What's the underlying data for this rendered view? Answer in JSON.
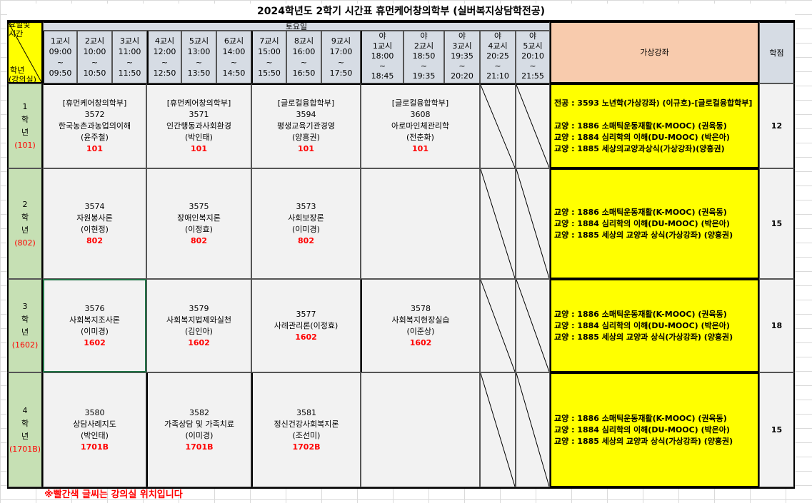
{
  "title": "2024학년도 2학기 시간표 휴먼케어창의학부 (실버복지상담학전공)",
  "corner": {
    "top": "요일및시간",
    "bottom": "학년",
    "bottom2": "(강의실)"
  },
  "day": "토요일",
  "slots": [
    {
      "label": "1교시",
      "start": "09:00",
      "end": "09:50"
    },
    {
      "label": "2교시",
      "start": "10:00",
      "end": "10:50"
    },
    {
      "label": "3교시",
      "start": "11:00",
      "end": "11:50"
    },
    {
      "label": "4교시",
      "start": "12:00",
      "end": "12:50"
    },
    {
      "label": "5교시",
      "start": "13:00",
      "end": "13:50"
    },
    {
      "label": "6교시",
      "start": "14:00",
      "end": "14:50"
    },
    {
      "label": "7교시",
      "start": "15:00",
      "end": "15:50"
    },
    {
      "label": "8교시",
      "start": "16:00",
      "end": "16:50"
    },
    {
      "label": "9교시",
      "start": "17:00",
      "end": "17:50"
    }
  ],
  "night_slots": [
    {
      "prefix": "야",
      "label": "1교시",
      "start": "18:00",
      "end": "18:45"
    },
    {
      "prefix": "야",
      "label": "2교시",
      "start": "18:50",
      "end": "19:35"
    },
    {
      "prefix": "야",
      "label": "3교시",
      "start": "19:35",
      "end": "20:20"
    },
    {
      "prefix": "야",
      "label": "4교시",
      "start": "20:25",
      "end": "21:10"
    },
    {
      "prefix": "야",
      "label": "5교시",
      "start": "20:10",
      "end": "21:55"
    }
  ],
  "tilde": "~",
  "virtual_header": "가상강좌",
  "credit_header": "학점",
  "grades": [
    {
      "num": "1",
      "hak": "학",
      "nyeon": "년",
      "room": "(101)",
      "credits": "12",
      "courses": [
        {
          "dept": "[휴먼케어창의학부]",
          "code": "3572",
          "name": "한국농촌과농업의이해",
          "prof": "(윤주철)",
          "room": "101"
        },
        {
          "dept": "[휴먼케어창의학부]",
          "code": "3571",
          "name": "인간행동과사회환경",
          "prof": "(박인태)",
          "room": "101"
        },
        {
          "dept": "[글로컬융합학부]",
          "code": "3594",
          "name": "평생교육기관경영",
          "prof": "(양흥권)",
          "room": "101"
        },
        {
          "dept": "[글로컬융합학부]",
          "code": "3608",
          "name": "아로마인체관리학",
          "prof": "(전춘화)",
          "room": "101"
        }
      ],
      "virtual": [
        "전공 : 3593 노년학(가상강좌) (이규호)-[글로컬융합학부]",
        "",
        "교양 : 1886 소매틱운동재활(K-MOOC) (권육동)",
        "교양 : 1884 심리학의 이해(DU-MOOC) (박은아)",
        "교양 : 1885 세상의교양과상식(가상강좌)(양흥권)"
      ]
    },
    {
      "num": "2",
      "hak": "학",
      "nyeon": "년",
      "room": "(802)",
      "credits": "15",
      "courses": [
        {
          "code": "3574",
          "name": "자원봉사론",
          "prof": "(이현정)",
          "room": "802"
        },
        {
          "code": "3575",
          "name": "장애인복지론",
          "prof": "(이정효)",
          "room": "802"
        },
        {
          "code": "3573",
          "name": "사회보장론",
          "prof": "(이미경)",
          "room": "802"
        }
      ],
      "virtual": [
        "교양 : 1886 소매틱운동재활(K-MOOC) (권육동)",
        "교양 : 1884 심리학의 이해(DU-MOOC) (박은아)",
        "교양 : 1885 세상의 교양과 상식(가상강좌) (양흥권)"
      ]
    },
    {
      "num": "3",
      "hak": "학",
      "nyeon": "년",
      "room": "(1602)",
      "credits": "18",
      "courses": [
        {
          "code": "3576",
          "name": "사회복지조사론",
          "prof": "(이미경)",
          "room": "1602"
        },
        {
          "code": "3579",
          "name": "사회복지법제와실천",
          "prof": "(김인아)",
          "room": "1602"
        },
        {
          "code": "3577",
          "name": "사례관리론(이정효)",
          "room": "1602"
        },
        {
          "code": "3578",
          "name": "사회복지현장실습",
          "prof": "(이준상)",
          "room": "1602"
        }
      ],
      "virtual": [
        "교양 : 1886 소매틱운동재활(K-MOOC) (권육동)",
        "교양 : 1884 심리학의 이해(DU-MOOC) (박은아)",
        "교양 : 1885 세상의 교양과 상식(가상강좌) (양흥권)"
      ]
    },
    {
      "num": "4",
      "hak": "학",
      "nyeon": "년",
      "room": "(1701B)",
      "credits": "15",
      "courses": [
        {
          "code": "3580",
          "name": "상담사례지도",
          "prof": "(박인태)",
          "room": "1701B"
        },
        {
          "code": "3582",
          "name": "가족상담 및 가족치료",
          "prof": "(이미경)",
          "room": "1701B"
        },
        {
          "code": "3581",
          "name": "정신건강사회복지론",
          "prof": "(조선미)",
          "room": "1702B"
        }
      ],
      "virtual": [
        "교양 : 1886 소매틱운동재활(K-MOOC) (권육동)",
        "교양 : 1884 심리학의 이해(DU-MOOC) (박은아)",
        "교양 : 1885 세상의 교양과 상식(가상강좌) (양흥권)"
      ]
    }
  ],
  "footnote": "※빨간색 글씨는 강의실 위치입니다",
  "colors": {
    "header": "#d6dce4",
    "grade": "#c6e0b4",
    "virtual": "#ffff00",
    "virtual_header": "#f8cbad",
    "room": "#ff0000"
  }
}
